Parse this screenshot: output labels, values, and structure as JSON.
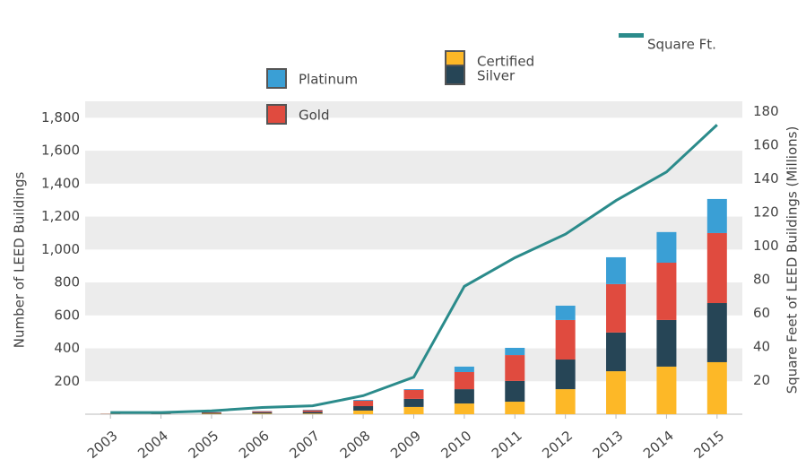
{
  "chart_data": {
    "type": "stacked_bar_line",
    "y_axis_label": "Number of LEED Buildings",
    "y2_axis_label": "Square Feet of LEED Buildings (Millions)",
    "categories": [
      "2003",
      "2004",
      "2005",
      "2006",
      "2007",
      "2008",
      "2009",
      "2010",
      "2011",
      "2012",
      "2013",
      "2014",
      "2015"
    ],
    "series": [
      {
        "name": "Certified",
        "color": "#fdb827",
        "values": [
          1,
          1,
          3,
          4,
          4,
          22,
          44,
          65,
          76,
          152,
          261,
          289,
          316
        ]
      },
      {
        "name": "Silver",
        "color": "#264556",
        "values": [
          1,
          2,
          5,
          8,
          10,
          27,
          49,
          87,
          126,
          180,
          235,
          283,
          359
        ]
      },
      {
        "name": "Gold",
        "color": "#e04b3f",
        "values": [
          1,
          1,
          4,
          6,
          10,
          33,
          54,
          104,
          157,
          240,
          294,
          348,
          425
        ]
      },
      {
        "name": "Platinum",
        "color": "#3a9fd5",
        "values": [
          0,
          0,
          1,
          2,
          3,
          5,
          5,
          33,
          44,
          87,
          163,
          186,
          207
        ]
      },
      {
        "name": "Square Ft.",
        "color": "#2b8b8b",
        "axis": "y2",
        "values": [
          1,
          1,
          2,
          4,
          5,
          11,
          22,
          76,
          93,
          107,
          127,
          144,
          172
        ]
      }
    ],
    "ylim": [
      0,
      1900
    ],
    "yticks": [
      {
        "value": 200,
        "label": "200"
      },
      {
        "value": 400,
        "label": "400"
      },
      {
        "value": 600,
        "label": "600"
      },
      {
        "value": 800,
        "label": "800"
      },
      {
        "value": 1000,
        "label": "1,000"
      },
      {
        "value": 1200,
        "label": "1,200"
      },
      {
        "value": 1400,
        "label": "1,400"
      },
      {
        "value": 1600,
        "label": "1,600"
      },
      {
        "value": 1800,
        "label": "1,800"
      }
    ],
    "y2lim": [
      0,
      186
    ],
    "y2ticks": [
      20,
      40,
      60,
      80,
      100,
      120,
      140,
      160,
      180
    ],
    "grid": "bands"
  }
}
